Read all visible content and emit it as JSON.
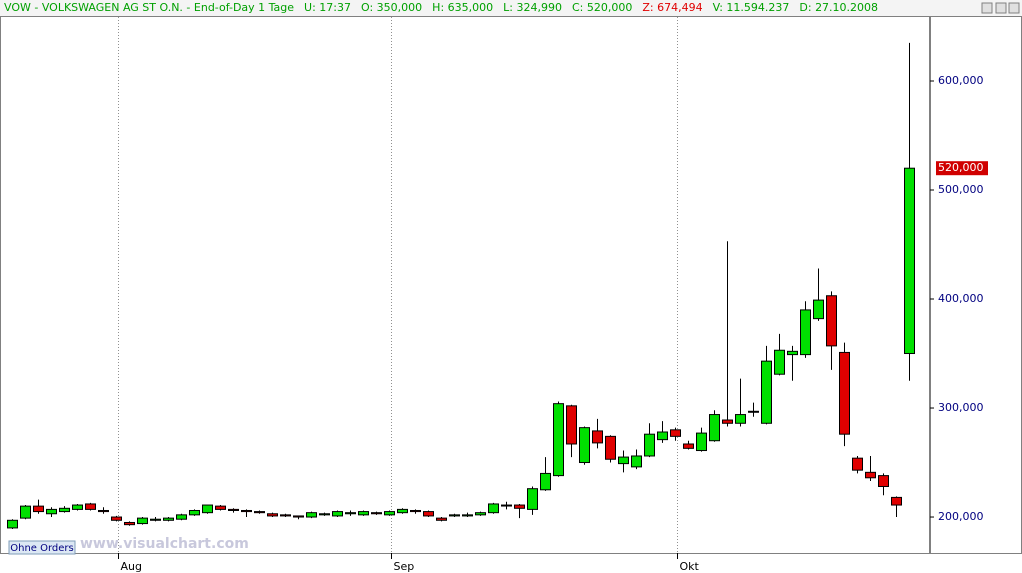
{
  "header": {
    "title": "VOW - VOLKSWAGEN AG ST O.N. - End-of-Day 1 Tage",
    "fields": [
      {
        "text": "U: 17:37",
        "color": "#00a000"
      },
      {
        "text": "O: 350,000",
        "color": "#00a000"
      },
      {
        "text": "H: 635,000",
        "color": "#00a000"
      },
      {
        "text": "L: 324,990",
        "color": "#00a000"
      },
      {
        "text": "C: 520,000",
        "color": "#00a000"
      },
      {
        "text": "Z: 674,494",
        "color": "#e00000"
      },
      {
        "text": "V: 11.594.237",
        "color": "#00a000"
      },
      {
        "text": "D: 27.10.2008",
        "color": "#00a000"
      }
    ]
  },
  "watermark": "www.visualchart.com",
  "button": "Ohne Orders",
  "chart_data": {
    "type": "candlestick",
    "categories": [
      null,
      null,
      null,
      null,
      null,
      null,
      null,
      null,
      null,
      null,
      null,
      null,
      null,
      null,
      null,
      null,
      null,
      null,
      null,
      null,
      null,
      null,
      null,
      null,
      null,
      null,
      null,
      null,
      null,
      null,
      null,
      null,
      null,
      null,
      null,
      null,
      null,
      null,
      null,
      null,
      null,
      null,
      null,
      null,
      null,
      null,
      null,
      null,
      null,
      null,
      null,
      null,
      null,
      null,
      null,
      null,
      null,
      null,
      null,
      null,
      null,
      null,
      null,
      null,
      null,
      null,
      null,
      null,
      null,
      null
    ],
    "open": [
      190,
      199,
      210,
      203,
      205,
      207,
      212,
      206,
      200,
      195,
      194,
      197,
      197,
      198,
      202,
      204,
      210,
      207,
      206,
      205,
      203,
      202,
      201,
      200,
      202,
      201,
      203,
      202,
      204,
      202,
      204,
      206,
      205,
      199,
      201,
      201,
      202,
      204,
      211,
      211,
      207,
      225,
      238,
      302,
      250,
      279,
      274,
      249,
      246,
      256,
      271,
      280,
      267,
      261,
      270,
      289,
      286,
      297,
      286,
      331,
      349,
      349,
      382,
      403,
      351,
      254,
      241,
      238,
      218,
      350
    ],
    "high": [
      198,
      211,
      216,
      209,
      210,
      212,
      213,
      209,
      201,
      196,
      200,
      200,
      200,
      203,
      207,
      211,
      211,
      208,
      207,
      206,
      204,
      203,
      201,
      205,
      204,
      206,
      206,
      206,
      205,
      206,
      208,
      207,
      206,
      200,
      203,
      204,
      205,
      213,
      214,
      212,
      228,
      255,
      306,
      303,
      283,
      290,
      275,
      261,
      262,
      286,
      288,
      282,
      270,
      282,
      298,
      453,
      327,
      305,
      357,
      368,
      357,
      398,
      428,
      407,
      360,
      256,
      256,
      240,
      219,
      635
    ],
    "low": [
      189,
      198,
      203,
      200,
      204,
      206,
      206,
      203,
      196,
      192,
      193,
      196,
      196,
      197,
      201,
      203,
      206,
      204,
      200,
      203,
      200,
      200,
      198,
      199,
      201,
      200,
      201,
      201,
      202,
      201,
      203,
      203,
      200,
      196,
      200,
      200,
      201,
      203,
      207,
      199,
      202,
      224,
      237,
      255,
      248,
      263,
      250,
      241,
      244,
      255,
      268,
      270,
      262,
      260,
      269,
      283,
      283,
      292,
      285,
      330,
      325,
      346,
      380,
      335,
      265,
      240,
      233,
      220,
      200,
      325
    ],
    "close": [
      197,
      210,
      205,
      207,
      208,
      211,
      207,
      205,
      197,
      193,
      199,
      198,
      199,
      202,
      206,
      211,
      207,
      206,
      205,
      204,
      201,
      201,
      200,
      204,
      203,
      205,
      204,
      205,
      203,
      205,
      207,
      205,
      201,
      197,
      202,
      202,
      204,
      212,
      211,
      208,
      226,
      240,
      304,
      267,
      282,
      268,
      253,
      255,
      256,
      276,
      278,
      274,
      263,
      277,
      294,
      286,
      294,
      297,
      343,
      353,
      352,
      390,
      399,
      357,
      276,
      243,
      236,
      228,
      211,
      520
    ],
    "up_color": "#00e000",
    "down_color": "#e00000",
    "ylim": [
      167,
      661
    ],
    "yticks": [
      {
        "value": 200,
        "label": "200,000"
      },
      {
        "value": 300,
        "label": "300,000"
      },
      {
        "value": 400,
        "label": "400,000"
      },
      {
        "value": 500,
        "label": "500,000"
      },
      {
        "value": 600,
        "label": "600,000"
      }
    ],
    "xticks": [
      {
        "value": 8,
        "label": "Aug"
      },
      {
        "value": 29,
        "label": "Sep"
      },
      {
        "value": 51,
        "label": "Okt"
      }
    ],
    "last_price": {
      "value": 520,
      "label": "520,000"
    }
  }
}
